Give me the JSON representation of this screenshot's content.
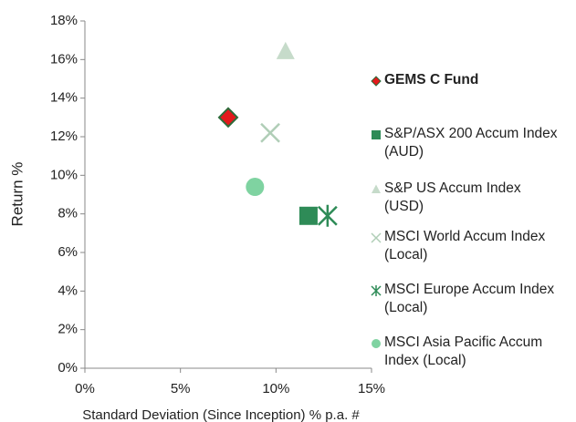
{
  "chart_data": {
    "type": "scatter",
    "x_label": "Standard Deviation (Since Inception) % p.a. #",
    "y_label": "Return %",
    "xlim": [
      0,
      15
    ],
    "xticks": [
      {
        "value": 0,
        "label": "0%"
      },
      {
        "value": 5,
        "label": "5%"
      },
      {
        "value": 10,
        "label": "10%"
      },
      {
        "value": 15,
        "label": "15%"
      }
    ],
    "ylim": [
      0,
      18
    ],
    "yticks": [
      {
        "value": 0,
        "label": "0%"
      },
      {
        "value": 2,
        "label": "2%"
      },
      {
        "value": 4,
        "label": "4%"
      },
      {
        "value": 6,
        "label": "6%"
      },
      {
        "value": 8,
        "label": "8%"
      },
      {
        "value": 10,
        "label": "10%"
      },
      {
        "value": 12,
        "label": "12%"
      },
      {
        "value": 14,
        "label": "14%"
      },
      {
        "value": 16,
        "label": "16%"
      },
      {
        "value": 18,
        "label": "18%"
      }
    ],
    "series": [
      {
        "name": "GEMS C Fund",
        "color": "#e3191c",
        "marker": "diamond",
        "x": [
          7.5
        ],
        "values": [
          13.0
        ]
      },
      {
        "name": "S&P/ASX 200 Accum Index (AUD)",
        "color": "#2e8b57",
        "marker": "square",
        "x": [
          11.7
        ],
        "values": [
          7.9
        ]
      },
      {
        "name": "S&P US Accum Index (USD)",
        "color": "#c6dbca",
        "marker": "triangle",
        "x": [
          10.5
        ],
        "values": [
          16.4
        ]
      },
      {
        "name": "MSCI World Accum Index (Local)",
        "color": "#b0ceb7",
        "marker": "x",
        "x": [
          9.7
        ],
        "values": [
          12.2
        ]
      },
      {
        "name": "MSCI Europe Accum Index (Local)",
        "color": "#2e8b57",
        "marker": "asterisk",
        "x": [
          12.7
        ],
        "values": [
          7.9
        ]
      },
      {
        "name": "MSCI Asia Pacific Accum Index (Local)",
        "color": "#7fd3a1",
        "marker": "circle",
        "x": [
          8.9
        ],
        "values": [
          9.4
        ]
      }
    ]
  }
}
